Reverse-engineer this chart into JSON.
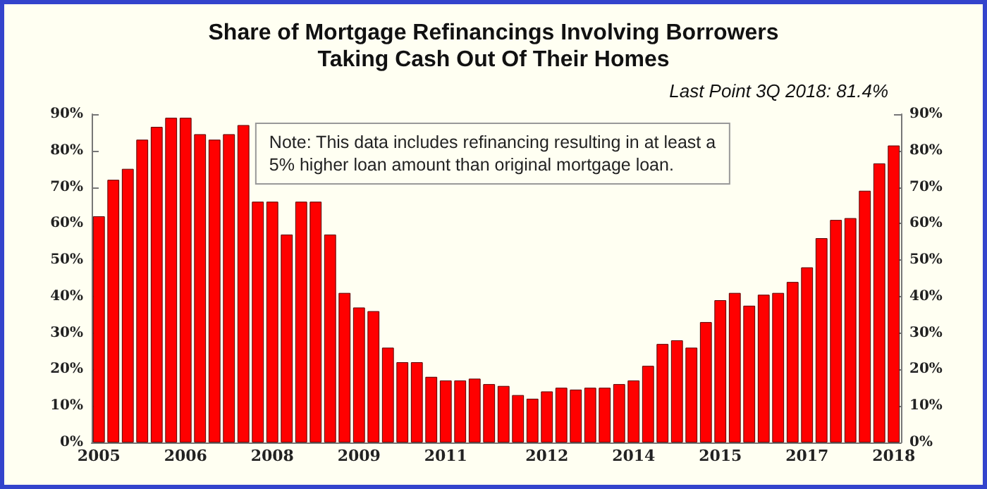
{
  "chart_data": {
    "type": "bar",
    "title": "Share of Mortgage Refinancings Involving Borrowers\nTaking Cash Out Of Their Homes",
    "subtitle": "Last Point 3Q 2018: 81.4%",
    "annotations": [
      "Note: This data includes refinancing resulting in at least a\n5% higher loan amount than original mortgage loan."
    ],
    "categories": [
      "2005",
      null,
      null,
      null,
      null,
      null,
      "2006",
      null,
      null,
      null,
      null,
      null,
      "2008",
      null,
      null,
      null,
      null,
      null,
      "2009",
      null,
      null,
      null,
      null,
      null,
      "2011",
      null,
      null,
      null,
      null,
      null,
      null,
      "2012",
      null,
      null,
      null,
      null,
      null,
      "2014",
      null,
      null,
      null,
      null,
      null,
      "2015",
      null,
      null,
      null,
      null,
      null,
      "2017",
      null,
      null,
      null,
      null,
      null,
      "2018"
    ],
    "values": [
      62,
      72,
      75,
      83,
      86.5,
      89,
      89,
      84.5,
      83,
      84.5,
      87,
      66,
      66,
      57,
      66,
      66,
      57,
      41,
      37,
      36,
      26,
      22,
      22,
      18,
      17,
      17,
      17.5,
      16,
      15.5,
      13,
      12,
      14,
      15,
      14.5,
      15,
      15,
      16,
      17,
      21,
      27,
      28,
      26,
      33,
      39,
      41,
      37.5,
      40.5,
      41,
      44,
      48,
      56,
      61,
      61.5,
      69,
      76.5,
      81.4
    ],
    "color": "#ff0000",
    "ylim": [
      0,
      90
    ],
    "yticks": [
      {
        "value": 0,
        "label": "0%"
      },
      {
        "value": 10,
        "label": "10%"
      },
      {
        "value": 20,
        "label": "20%"
      },
      {
        "value": 30,
        "label": "30%"
      },
      {
        "value": 40,
        "label": "40%"
      },
      {
        "value": 50,
        "label": "50%"
      },
      {
        "value": 60,
        "label": "60%"
      },
      {
        "value": 70,
        "label": "70%"
      },
      {
        "value": 80,
        "label": "80%"
      },
      {
        "value": 90,
        "label": "90%"
      }
    ],
    "y2lim": [
      0,
      90
    ],
    "y2ticks": [
      {
        "value": 0,
        "label": "0%"
      },
      {
        "value": 10,
        "label": "10%"
      },
      {
        "value": 20,
        "label": "20%"
      },
      {
        "value": 30,
        "label": "30%"
      },
      {
        "value": 40,
        "label": "40%"
      },
      {
        "value": 50,
        "label": "50%"
      },
      {
        "value": 60,
        "label": "60%"
      },
      {
        "value": 70,
        "label": "70%"
      },
      {
        "value": 80,
        "label": "80%"
      },
      {
        "value": 90,
        "label": "90%"
      }
    ],
    "grid": false
  }
}
